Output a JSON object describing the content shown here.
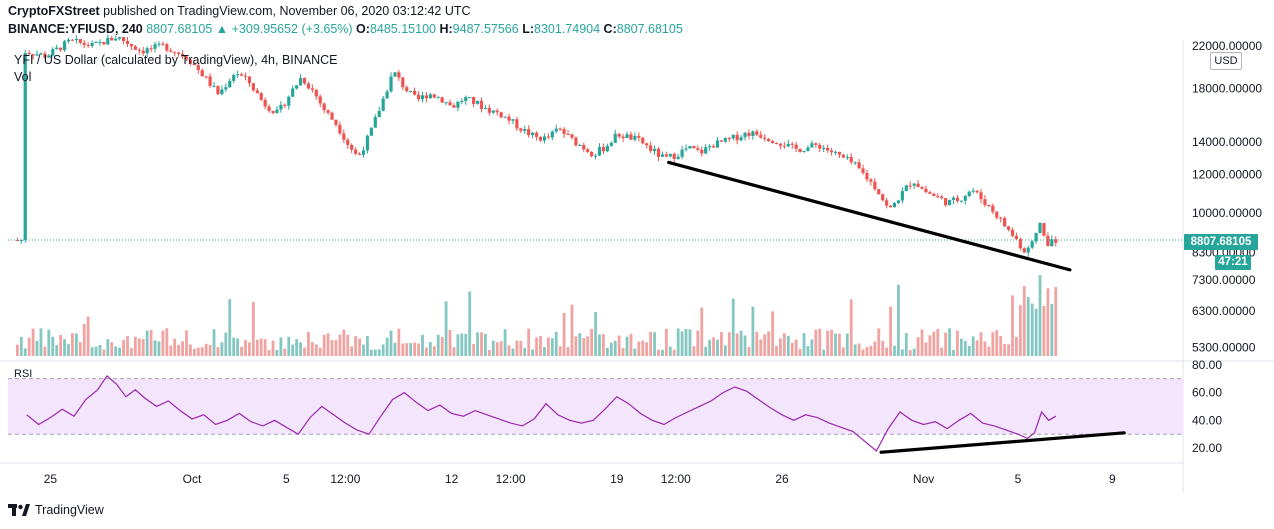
{
  "header": {
    "publisher": "CryptoFXStreet",
    "published_text": "published on TradingView.com, November 06, 2020 03:12:42 UTC",
    "symbol_line": "BINANCE:YFIUSD, 240",
    "last": "8807.68105",
    "change_arrow": "▲",
    "change": "+309.95652 (+3.65%)",
    "o_label": "O:",
    "o": "8485.15100",
    "h_label": "H:",
    "h": "9487.57566",
    "l_label": "L:",
    "l": "8301.74904",
    "c_label": "C:",
    "c": "8807.68105"
  },
  "legend": {
    "title": "YFI / US Dollar (calculated by TradingView), 4h, BINANCE",
    "vol": "Vol",
    "rsi": "RSI"
  },
  "price_axis": {
    "currency": "USD",
    "current_price": "8807.68105",
    "countdown": "47:21"
  },
  "brand": {
    "name": "TradingView",
    "icon": "tradingview-logo-icon"
  },
  "colors": {
    "up": "#26a69a",
    "down": "#ef5350",
    "vol_up": "#84c7c1",
    "vol_down": "#f1a3a1",
    "rsi_line": "#9c27b0",
    "rsi_band": "#f3e5fc",
    "trendline": "#000000"
  },
  "chart_data": {
    "type": "candlestick",
    "title": "YFI / US Dollar (calculated by TradingView), 4h, BINANCE",
    "price_scale": "log",
    "price_ylim": [
      5000,
      22000
    ],
    "price_ticks": [
      5300,
      6300,
      7300,
      8300,
      10000,
      12000,
      14000,
      18000,
      22000
    ],
    "price_tick_labels": [
      "5300.00000",
      "6300.00000",
      "7300.00000",
      "8300.00000",
      "10000.00000",
      "12000.00000",
      "14000.00000",
      "18000.00000",
      "22000.00000"
    ],
    "x_tick_labels": [
      "25",
      "Oct",
      "5",
      "12:00",
      "12",
      "12:00",
      "19",
      "12:00",
      "26",
      "Nov",
      "5",
      "9"
    ],
    "x_tick_days": [
      -6,
      0,
      4,
      6.5,
      11,
      13.5,
      18,
      20.5,
      25,
      31,
      35,
      39
    ],
    "x_tick_note": "tick positions in days relative to Oct 1 2020; 12:00 ticks are midday of the following day",
    "price_path": [
      [
        -7.0,
        21500
      ],
      [
        -6.0,
        21000
      ],
      [
        -5.0,
        22500
      ],
      [
        -4.0,
        22000
      ],
      [
        -3.0,
        23000
      ],
      [
        -2.0,
        21500
      ],
      [
        -1.0,
        22000
      ],
      [
        0.0,
        20800
      ],
      [
        0.7,
        19000
      ],
      [
        1.3,
        17500
      ],
      [
        2.0,
        19500
      ],
      [
        2.6,
        18500
      ],
      [
        3.2,
        16800
      ],
      [
        3.8,
        16000
      ],
      [
        4.3,
        17500
      ],
      [
        4.8,
        19000
      ],
      [
        5.3,
        17800
      ],
      [
        5.8,
        16200
      ],
      [
        6.3,
        15200
      ],
      [
        6.8,
        13800
      ],
      [
        7.2,
        13000
      ],
      [
        7.7,
        14500
      ],
      [
        8.2,
        16800
      ],
      [
        8.7,
        19500
      ],
      [
        9.2,
        18000
      ],
      [
        9.7,
        17000
      ],
      [
        10.2,
        17600
      ],
      [
        10.7,
        17200
      ],
      [
        11.2,
        16500
      ],
      [
        11.7,
        17200
      ],
      [
        12.2,
        16800
      ],
      [
        12.7,
        16300
      ],
      [
        13.2,
        16000
      ],
      [
        13.7,
        15400
      ],
      [
        14.2,
        14800
      ],
      [
        14.7,
        14300
      ],
      [
        15.2,
        14200
      ],
      [
        15.7,
        14900
      ],
      [
        16.2,
        14200
      ],
      [
        16.7,
        13700
      ],
      [
        17.2,
        13200
      ],
      [
        17.7,
        13700
      ],
      [
        18.2,
        14500
      ],
      [
        18.7,
        14300
      ],
      [
        19.2,
        14000
      ],
      [
        19.7,
        13400
      ],
      [
        20.2,
        12900
      ],
      [
        20.7,
        13200
      ],
      [
        21.2,
        13600
      ],
      [
        21.7,
        13300
      ],
      [
        22.2,
        13800
      ],
      [
        22.7,
        14000
      ],
      [
        23.2,
        14300
      ],
      [
        23.7,
        14600
      ],
      [
        24.2,
        14500
      ],
      [
        24.7,
        14200
      ],
      [
        25.2,
        13900
      ],
      [
        25.7,
        13500
      ],
      [
        26.2,
        13600
      ],
      [
        26.7,
        13800
      ],
      [
        27.2,
        13400
      ],
      [
        27.7,
        13000
      ],
      [
        28.2,
        12600
      ],
      [
        28.7,
        11900
      ],
      [
        29.2,
        11200
      ],
      [
        29.7,
        10100
      ],
      [
        30.2,
        10900
      ],
      [
        30.7,
        11700
      ],
      [
        31.2,
        11100
      ],
      [
        31.7,
        10800
      ],
      [
        32.2,
        10500
      ],
      [
        32.7,
        10700
      ],
      [
        33.2,
        11200
      ],
      [
        33.7,
        10600
      ],
      [
        34.2,
        10000
      ],
      [
        34.7,
        9300
      ],
      [
        35.2,
        8700
      ],
      [
        35.5,
        8200
      ],
      [
        35.8,
        8700
      ],
      [
        36.1,
        9600
      ],
      [
        36.4,
        8500
      ],
      [
        36.6,
        8807.68
      ]
    ],
    "volume_scale": "relative 0-1",
    "rsi_path": [
      [
        -7.0,
        44
      ],
      [
        -6.5,
        37
      ],
      [
        -6.0,
        42
      ],
      [
        -5.5,
        48
      ],
      [
        -5.0,
        43
      ],
      [
        -4.5,
        55
      ],
      [
        -4.0,
        62
      ],
      [
        -3.6,
        72
      ],
      [
        -3.2,
        66
      ],
      [
        -2.8,
        57
      ],
      [
        -2.4,
        62
      ],
      [
        -2.0,
        56
      ],
      [
        -1.5,
        50
      ],
      [
        -1.0,
        54
      ],
      [
        -0.5,
        47
      ],
      [
        0.0,
        41
      ],
      [
        0.5,
        44
      ],
      [
        1.0,
        37
      ],
      [
        1.5,
        40
      ],
      [
        2.0,
        45
      ],
      [
        2.5,
        39
      ],
      [
        3.0,
        36
      ],
      [
        3.5,
        40
      ],
      [
        4.0,
        35
      ],
      [
        4.5,
        30
      ],
      [
        5.0,
        42
      ],
      [
        5.5,
        50
      ],
      [
        6.0,
        44
      ],
      [
        6.5,
        38
      ],
      [
        7.0,
        33
      ],
      [
        7.5,
        30
      ],
      [
        8.0,
        43
      ],
      [
        8.5,
        55
      ],
      [
        9.0,
        60
      ],
      [
        9.5,
        53
      ],
      [
        10.0,
        47
      ],
      [
        10.5,
        51
      ],
      [
        11.0,
        45
      ],
      [
        11.5,
        43
      ],
      [
        12.0,
        47
      ],
      [
        12.5,
        44
      ],
      [
        13.0,
        41
      ],
      [
        13.5,
        38
      ],
      [
        14.0,
        36
      ],
      [
        14.5,
        41
      ],
      [
        15.0,
        52
      ],
      [
        15.5,
        44
      ],
      [
        16.0,
        40
      ],
      [
        16.5,
        38
      ],
      [
        17.0,
        40
      ],
      [
        17.5,
        48
      ],
      [
        18.0,
        57
      ],
      [
        18.5,
        52
      ],
      [
        19.0,
        45
      ],
      [
        19.5,
        40
      ],
      [
        20.0,
        37
      ],
      [
        20.5,
        42
      ],
      [
        21.0,
        46
      ],
      [
        21.5,
        50
      ],
      [
        22.0,
        54
      ],
      [
        22.5,
        60
      ],
      [
        23.0,
        64
      ],
      [
        23.5,
        61
      ],
      [
        24.0,
        55
      ],
      [
        24.5,
        49
      ],
      [
        25.0,
        44
      ],
      [
        25.5,
        40
      ],
      [
        26.0,
        44
      ],
      [
        26.5,
        42
      ],
      [
        27.0,
        38
      ],
      [
        27.5,
        35
      ],
      [
        28.0,
        32
      ],
      [
        28.5,
        25
      ],
      [
        29.0,
        18
      ],
      [
        29.5,
        34
      ],
      [
        30.0,
        46
      ],
      [
        30.5,
        40
      ],
      [
        31.0,
        37
      ],
      [
        31.5,
        39
      ],
      [
        32.0,
        34
      ],
      [
        32.5,
        40
      ],
      [
        33.0,
        45
      ],
      [
        33.5,
        38
      ],
      [
        34.0,
        36
      ],
      [
        34.5,
        33
      ],
      [
        35.0,
        30
      ],
      [
        35.4,
        27
      ],
      [
        35.7,
        31
      ],
      [
        36.0,
        46
      ],
      [
        36.3,
        40
      ],
      [
        36.6,
        43
      ]
    ],
    "rsi_ylim": [
      10,
      82
    ],
    "rsi_ticks": [
      20,
      40,
      60,
      80
    ],
    "rsi_tick_labels": [
      "20.00",
      "40.00",
      "60.00",
      "80.00"
    ],
    "rsi_band": [
      30,
      70
    ],
    "annotations": [
      {
        "type": "trendline",
        "pane": "price",
        "from": [
          20.2,
          12700
        ],
        "to": [
          37.2,
          7650
        ]
      },
      {
        "type": "trendline",
        "pane": "rsi",
        "from": [
          29.2,
          17
        ],
        "to": [
          39.5,
          31
        ]
      }
    ]
  }
}
